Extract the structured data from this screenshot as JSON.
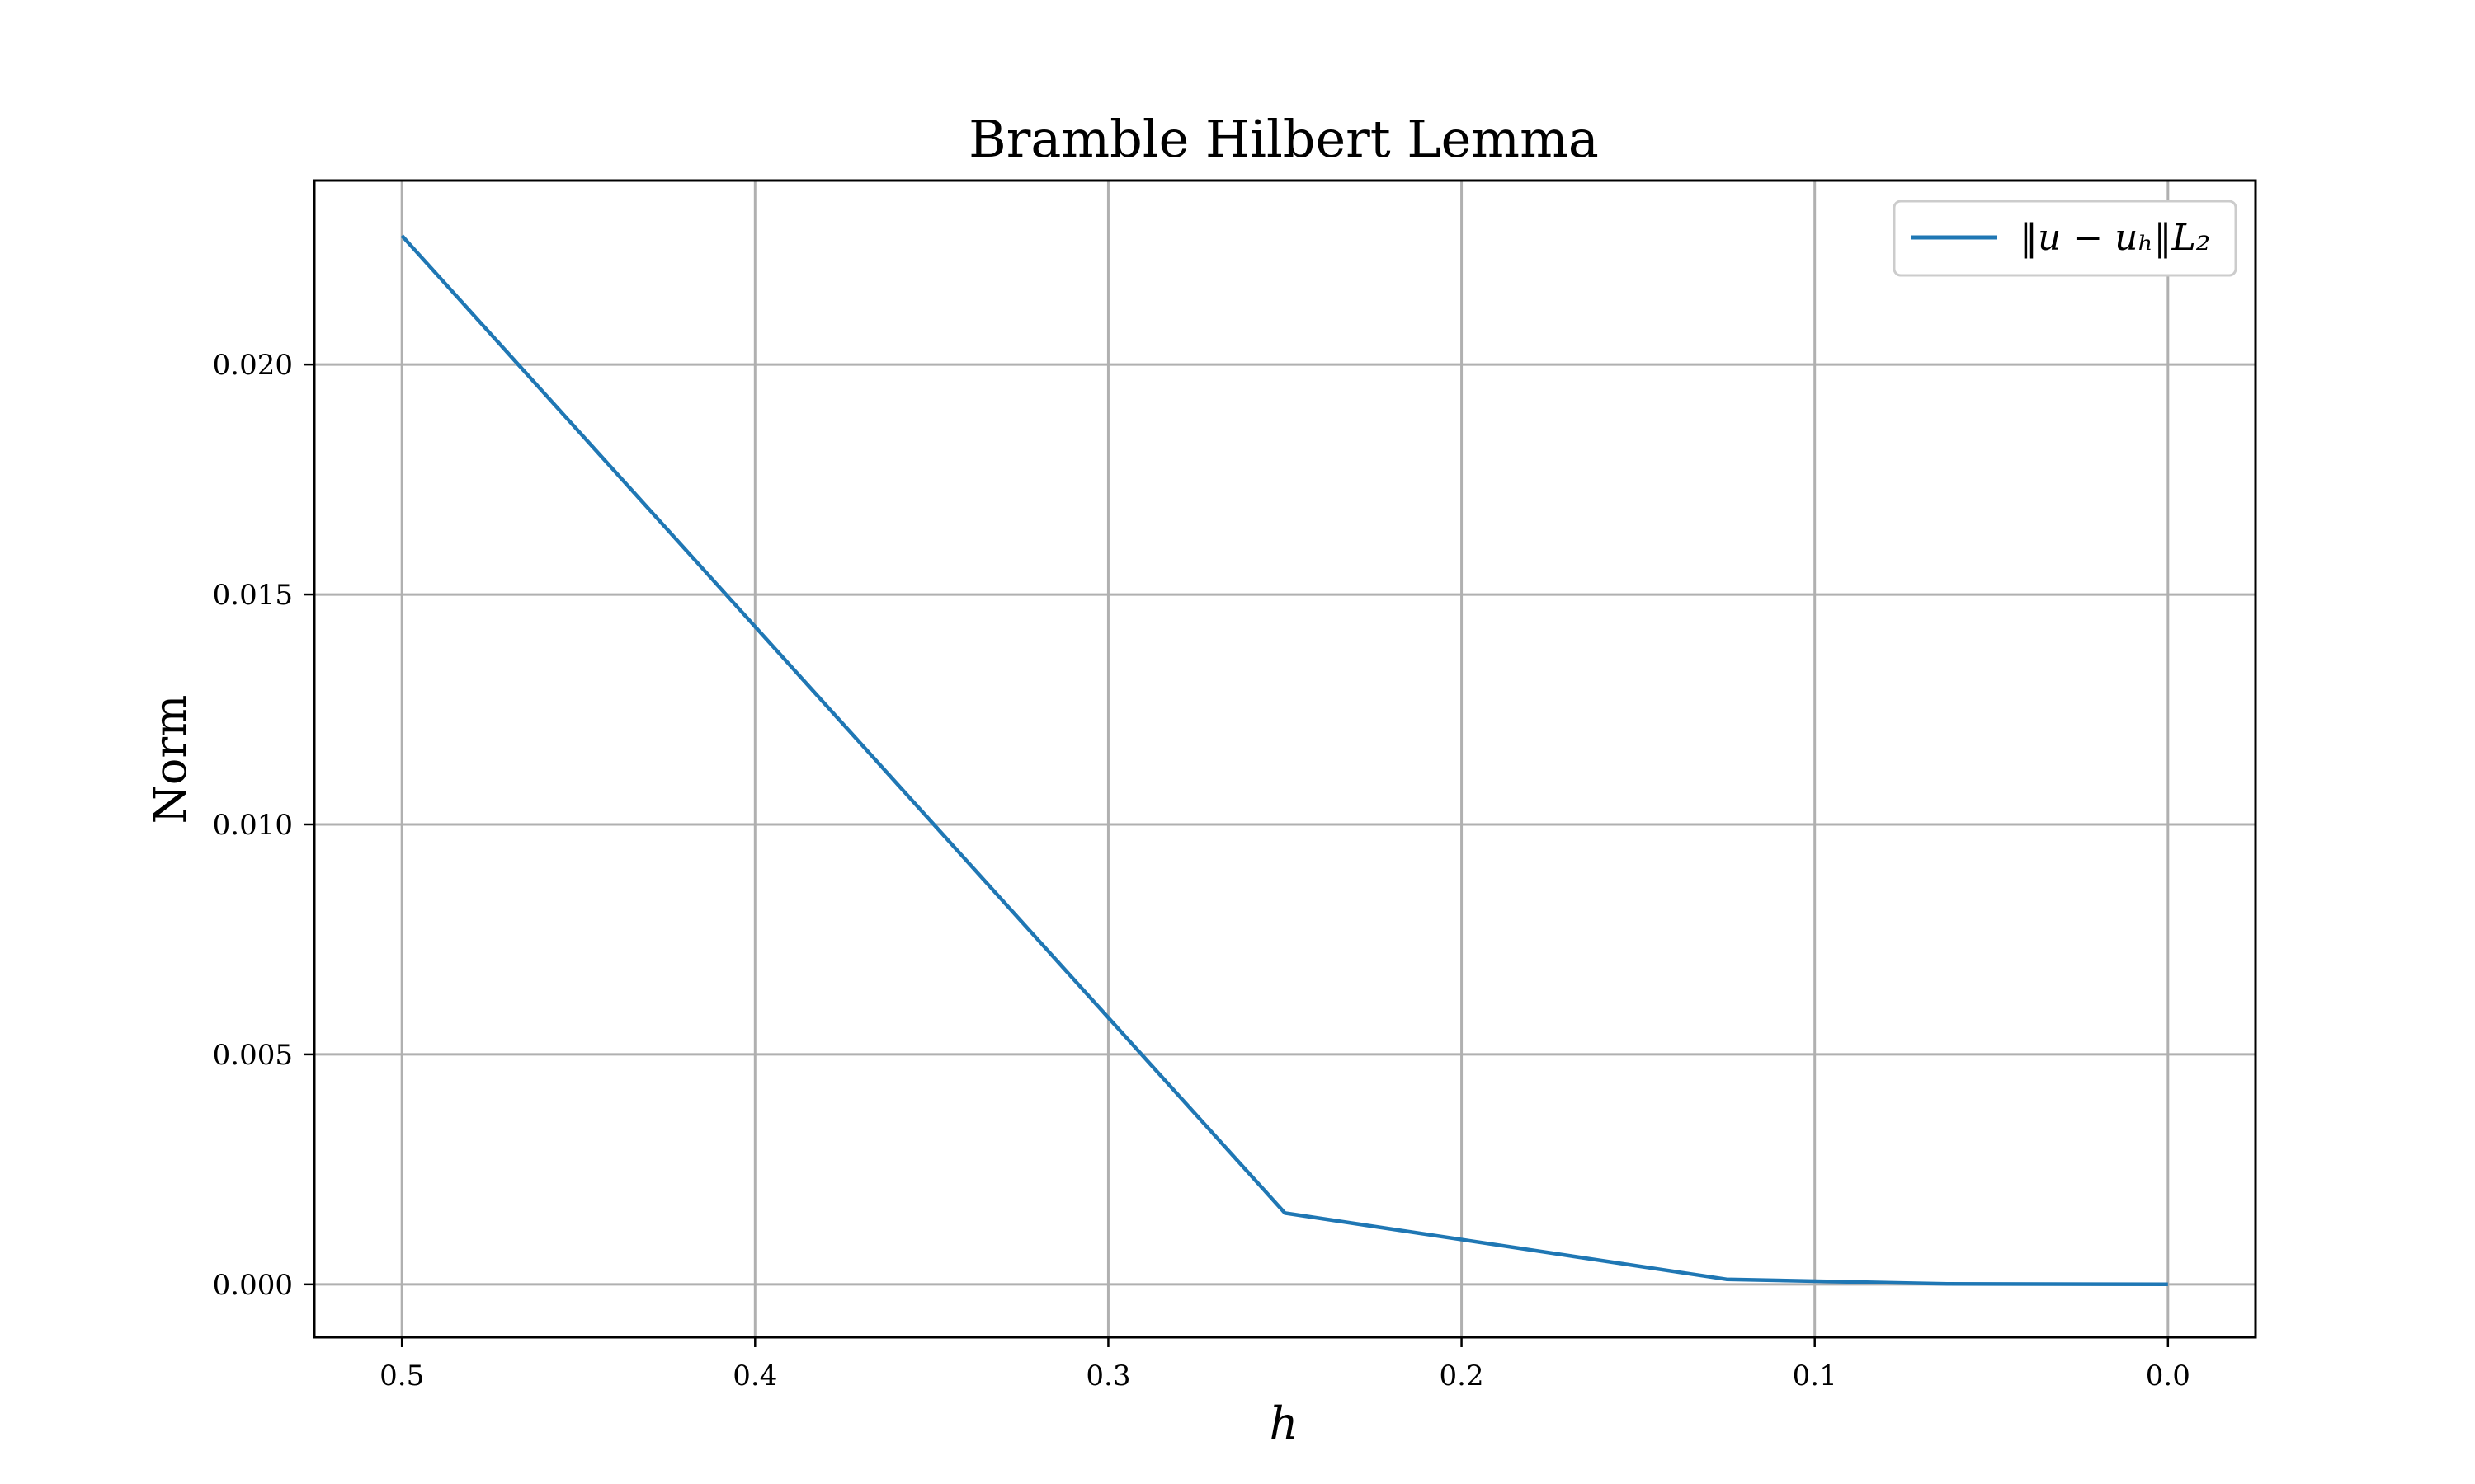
{
  "chart_data": {
    "type": "line",
    "title": "Bramble Hilbert Lemma",
    "xlabel": "h",
    "ylabel": "Norm",
    "x_inverted": true,
    "xlim": [
      0.5248,
      -0.0248
    ],
    "ylim": [
      -0.00115,
      0.024
    ],
    "xticks": [
      0.5,
      0.4,
      0.3,
      0.2,
      0.1,
      0.0
    ],
    "xtick_labels": [
      "0.5",
      "0.4",
      "0.3",
      "0.2",
      "0.1",
      "0.0"
    ],
    "yticks": [
      0.0,
      0.005,
      0.01,
      0.015,
      0.02
    ],
    "ytick_labels": [
      "0.000",
      "0.005",
      "0.010",
      "0.015",
      "0.020"
    ],
    "grid": true,
    "legend_position": "top-right",
    "series": [
      {
        "name": "‖u − uₕ‖L₂",
        "color": "#1f77b4",
        "x": [
          0.5,
          0.25,
          0.125,
          0.0625,
          0.0
        ],
        "y": [
          0.0228,
          0.00155,
          0.00011,
          1e-05,
          0.0
        ]
      }
    ]
  }
}
